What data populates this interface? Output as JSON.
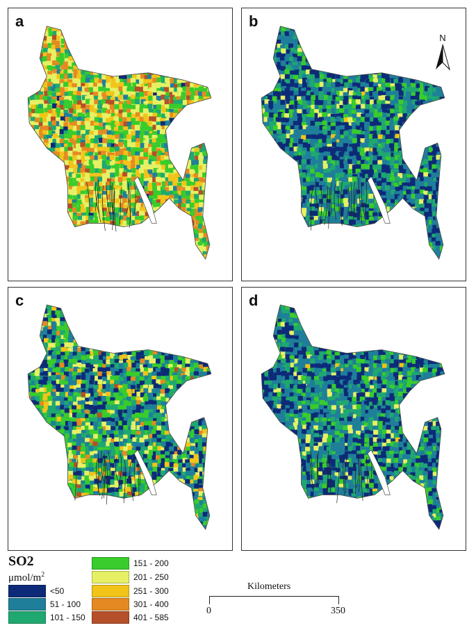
{
  "panels": [
    {
      "id": "a",
      "label": "a"
    },
    {
      "id": "b",
      "label": "b"
    },
    {
      "id": "c",
      "label": "c"
    },
    {
      "id": "d",
      "label": "d"
    }
  ],
  "north_arrow": {
    "label": "N"
  },
  "legend": {
    "title": "SO2",
    "unit": "μmol/m",
    "unit_exp": "2",
    "classes": [
      {
        "label": "<50",
        "color": "#0d2a78"
      },
      {
        "label": "51 - 100",
        "color": "#1f7f9a"
      },
      {
        "label": "101 - 150",
        "color": "#1fa870"
      },
      {
        "label": "151 - 200",
        "color": "#39cc2c"
      },
      {
        "label": "201 - 250",
        "color": "#e6f064"
      },
      {
        "label": "251 - 300",
        "color": "#f2c41a"
      },
      {
        "label": "301 - 400",
        "color": "#e58a22"
      },
      {
        "label": "401 - 585",
        "color": "#b5502a"
      }
    ]
  },
  "scale_bar": {
    "title": "Kilometers",
    "start": "0",
    "end": "350"
  }
}
